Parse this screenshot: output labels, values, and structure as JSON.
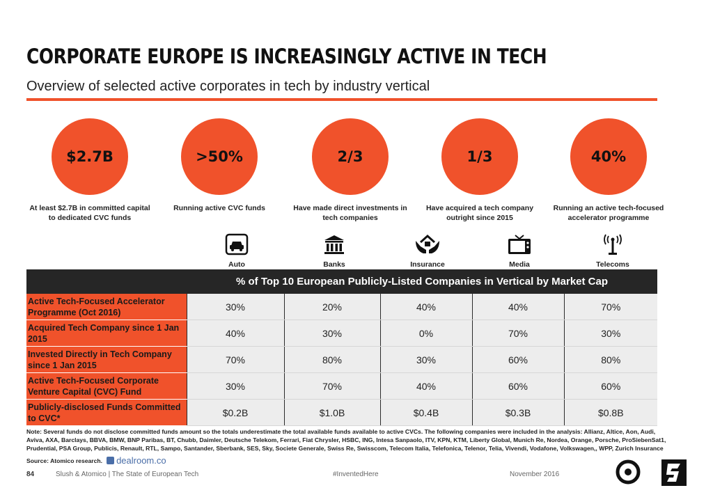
{
  "title": "CORPORATE EUROPE IS INCREASINGLY ACTIVE IN TECH",
  "subtitle": "Overview of selected active corporates in tech by industry vertical",
  "colors": {
    "accent": "#f0522b",
    "header_bg": "#262626",
    "cell_bg": "#ededed"
  },
  "stats": [
    {
      "value": "$2.7B",
      "caption": "At least $2.7B in committed capital to dedicated CVC funds"
    },
    {
      "value": ">50%",
      "caption": "Running active CVC funds"
    },
    {
      "value": "2/3",
      "caption": "Have made direct investments in tech companies"
    },
    {
      "value": "1/3",
      "caption": "Have acquired a tech company outright since 2015"
    },
    {
      "value": "40%",
      "caption": "Running an active tech-focused accelerator programme"
    }
  ],
  "verticals": [
    {
      "label": "Auto",
      "icon": "car-icon"
    },
    {
      "label": "Banks",
      "icon": "bank-icon"
    },
    {
      "label": "Insurance",
      "icon": "house-hands-icon"
    },
    {
      "label": "Media",
      "icon": "tv-icon"
    },
    {
      "label": "Telecoms",
      "icon": "antenna-icon"
    }
  ],
  "table": {
    "header": "% of Top 10 European Publicly-Listed Companies in Vertical by Market Cap",
    "rows": [
      {
        "label": "Active Tech-Focused Accelerator Programme (Oct 2016)",
        "values": [
          "30%",
          "20%",
          "40%",
          "40%",
          "70%"
        ]
      },
      {
        "label": "Acquired Tech Company since 1 Jan 2015",
        "values": [
          "40%",
          "30%",
          "0%",
          "70%",
          "30%"
        ]
      },
      {
        "label": "Invested Directly in Tech Company since 1 Jan 2015",
        "values": [
          "70%",
          "80%",
          "30%",
          "60%",
          "80%"
        ]
      },
      {
        "label": "Active Tech-Focused Corporate Venture Capital (CVC) Fund",
        "values": [
          "30%",
          "70%",
          "40%",
          "60%",
          "60%"
        ]
      },
      {
        "label": "Publicly-disclosed Funds Committed to CVC*",
        "values": [
          "$0.2B",
          "$1.0B",
          "$0.4B",
          "$0.3B",
          "$0.8B"
        ]
      }
    ]
  },
  "note": "Note: Several funds do not disclose committed funds amount so the totals underestimate the total available funds available to active CVCs. The following companies were included in the analysis: Allianz, Altice, Aon, Audi, Aviva, AXA, Barclays, BBVA, BMW, BNP Paribas, BT, Chubb, Daimler, Deutsche Telekom, Ferrari, Fiat Chrysler, HSBC, ING, Intesa Sanpaolo, ITV, KPN, KTM, Liberty Global, Munich Re, Nordea, Orange, Porsche, ProSiebenSat1, Prudential, PSA Group, Publicis, Renault, RTL, Sampo, Santander, Sberbank, SES, Sky, Societe Generale, Swiss Re, Swisscom, Telecom Italia, Telefonica, Telenor, Telia, Vivendi, Vodafone, Volkswagen,, WPP, Zurich Insurance",
  "source": "Source: Atomico research.",
  "dealroom": "dealroom.co",
  "footer": {
    "page": "84",
    "left": "Slush & Atomico  |  The State of European Tech",
    "mid": "#InventedHere",
    "right": "November 2016"
  },
  "logos": [
    "atomico-logo",
    "slush-logo"
  ]
}
